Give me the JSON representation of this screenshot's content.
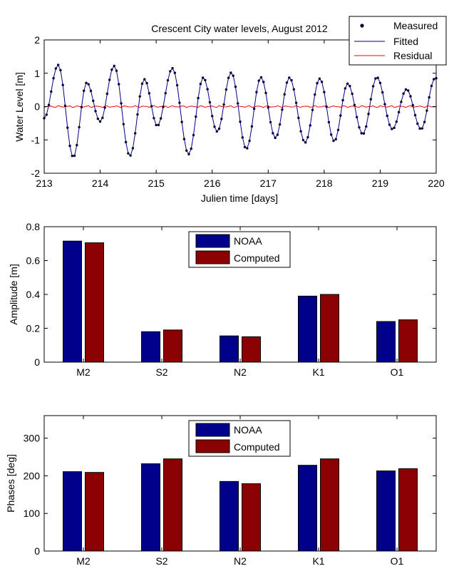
{
  "chart_data": [
    {
      "type": "line",
      "title": "Crescent City water levels, August 2012",
      "xlabel": "Julien time [days]",
      "ylabel": "Water Level [m]",
      "xlim": [
        213,
        220
      ],
      "ylim": [
        -2,
        2
      ],
      "x_ticks": [
        "213",
        "214",
        "215",
        "216",
        "217",
        "218",
        "219",
        "220"
      ],
      "y_ticks": [
        "-2",
        "-1",
        "0",
        "1",
        "2"
      ],
      "legend": {
        "position": "top-right",
        "entries": [
          "Measured",
          "Fitted",
          "Residual"
        ]
      },
      "colors": {
        "measured": "#000033",
        "fitted": "#00008b",
        "residual": "#ff0000"
      },
      "series": [
        {
          "name": "Measured",
          "marker": "dot",
          "extrema": [
            [
              213.0,
              -0.35
            ],
            [
              213.25,
              1.25
            ],
            [
              213.52,
              -1.52
            ],
            [
              213.76,
              0.72
            ],
            [
              214.0,
              -0.45
            ],
            [
              214.25,
              1.22
            ],
            [
              214.53,
              -1.48
            ],
            [
              214.79,
              0.82
            ],
            [
              215.02,
              -0.58
            ],
            [
              215.29,
              1.15
            ],
            [
              215.58,
              -1.43
            ],
            [
              215.84,
              0.87
            ],
            [
              216.09,
              -0.75
            ],
            [
              216.34,
              1.02
            ],
            [
              216.61,
              -1.27
            ],
            [
              216.87,
              0.88
            ],
            [
              217.13,
              -0.94
            ],
            [
              217.38,
              0.87
            ],
            [
              217.66,
              -1.08
            ],
            [
              217.92,
              0.84
            ],
            [
              218.18,
              -1.04
            ],
            [
              218.42,
              0.69
            ],
            [
              218.69,
              -0.83
            ],
            [
              218.94,
              0.88
            ],
            [
              219.22,
              -0.68
            ],
            [
              219.47,
              0.52
            ],
            [
              219.73,
              -0.68
            ],
            [
              219.98,
              0.85
            ],
            [
              220.0,
              0.85
            ]
          ]
        },
        {
          "name": "Fitted",
          "line": "solid"
        },
        {
          "name": "Residual",
          "line": "solid",
          "approx_level": 0.0
        }
      ]
    },
    {
      "type": "bar",
      "ylabel": "Amplitude [m]",
      "categories": [
        "M2",
        "S2",
        "N2",
        "K1",
        "O1"
      ],
      "ylim": [
        0,
        0.8
      ],
      "y_ticks": [
        "0",
        "0.2",
        "0.4",
        "0.6",
        "0.8"
      ],
      "legend": {
        "position": "top-center"
      },
      "series": [
        {
          "name": "NOAA",
          "color": "#00008b",
          "values": [
            0.715,
            0.18,
            0.155,
            0.39,
            0.24
          ]
        },
        {
          "name": "Computed",
          "color": "#8b0000",
          "values": [
            0.705,
            0.19,
            0.15,
            0.4,
            0.25
          ]
        }
      ]
    },
    {
      "type": "bar",
      "ylabel": "Phases [deg]",
      "categories": [
        "M2",
        "S2",
        "N2",
        "K1",
        "O1"
      ],
      "ylim": [
        0,
        360
      ],
      "y_ticks": [
        "0",
        "100",
        "200",
        "300"
      ],
      "legend": {
        "position": "top-center"
      },
      "series": [
        {
          "name": "NOAA",
          "color": "#00008b",
          "values": [
            211,
            232,
            185,
            228,
            213
          ]
        },
        {
          "name": "Computed",
          "color": "#8b0000",
          "values": [
            209,
            245,
            179,
            245,
            219
          ]
        }
      ]
    }
  ]
}
